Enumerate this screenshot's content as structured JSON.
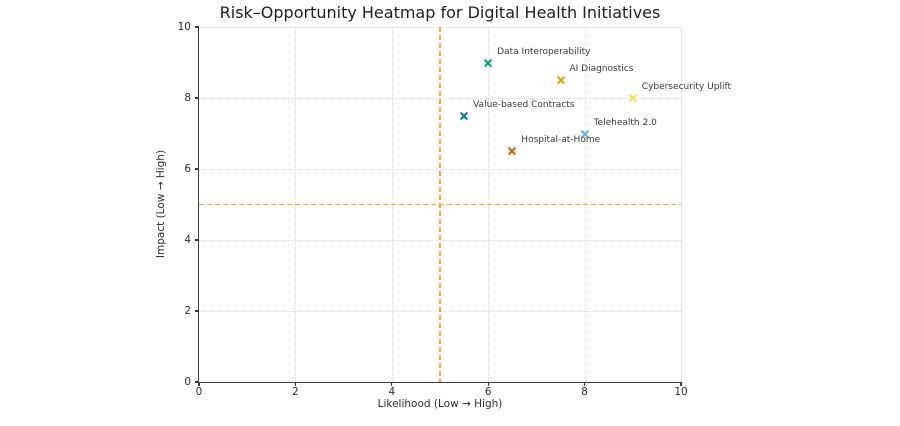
{
  "chart_data": {
    "type": "scatter",
    "title": "Risk–Opportunity Heatmap for Digital Health Initiatives",
    "xlabel": "Likelihood (Low → High)",
    "ylabel": "Impact (Low → High)",
    "xlim": [
      0,
      10
    ],
    "ylim": [
      0,
      10
    ],
    "xticks": [
      0,
      2,
      4,
      6,
      8,
      10
    ],
    "yticks": [
      0,
      2,
      4,
      6,
      8,
      10
    ],
    "grid": {
      "on": true,
      "x_values": [
        2,
        4,
        6,
        8
      ],
      "y_values": [
        2,
        4,
        6,
        8
      ],
      "style": "dotted",
      "color": "#dcdcdc"
    },
    "reference_lines": [
      {
        "axis": "x",
        "value": 5,
        "style": "dashed",
        "color": "#F0A830"
      },
      {
        "axis": "y",
        "value": 5,
        "style": "dashed",
        "color": "#F0A830"
      }
    ],
    "marker": "x",
    "legend": "none",
    "points": [
      {
        "label": "Data Interoperability",
        "x": 6,
        "y": 9,
        "color": "#009E73"
      },
      {
        "label": "AI Diagnostics",
        "x": 7.5,
        "y": 8.5,
        "color": "#E69F00"
      },
      {
        "label": "Cybersecurity Uplift",
        "x": 9,
        "y": 8,
        "color": "#F0E442"
      },
      {
        "label": "Value-based Contracts",
        "x": 5.5,
        "y": 7.5,
        "color": "#0072B2"
      },
      {
        "label": "Telehealth 2.0",
        "x": 8,
        "y": 7,
        "color": "#56B4E9"
      },
      {
        "label": "Hospital-at-Home",
        "x": 6.5,
        "y": 6.5,
        "color": "#D55E00"
      }
    ]
  }
}
